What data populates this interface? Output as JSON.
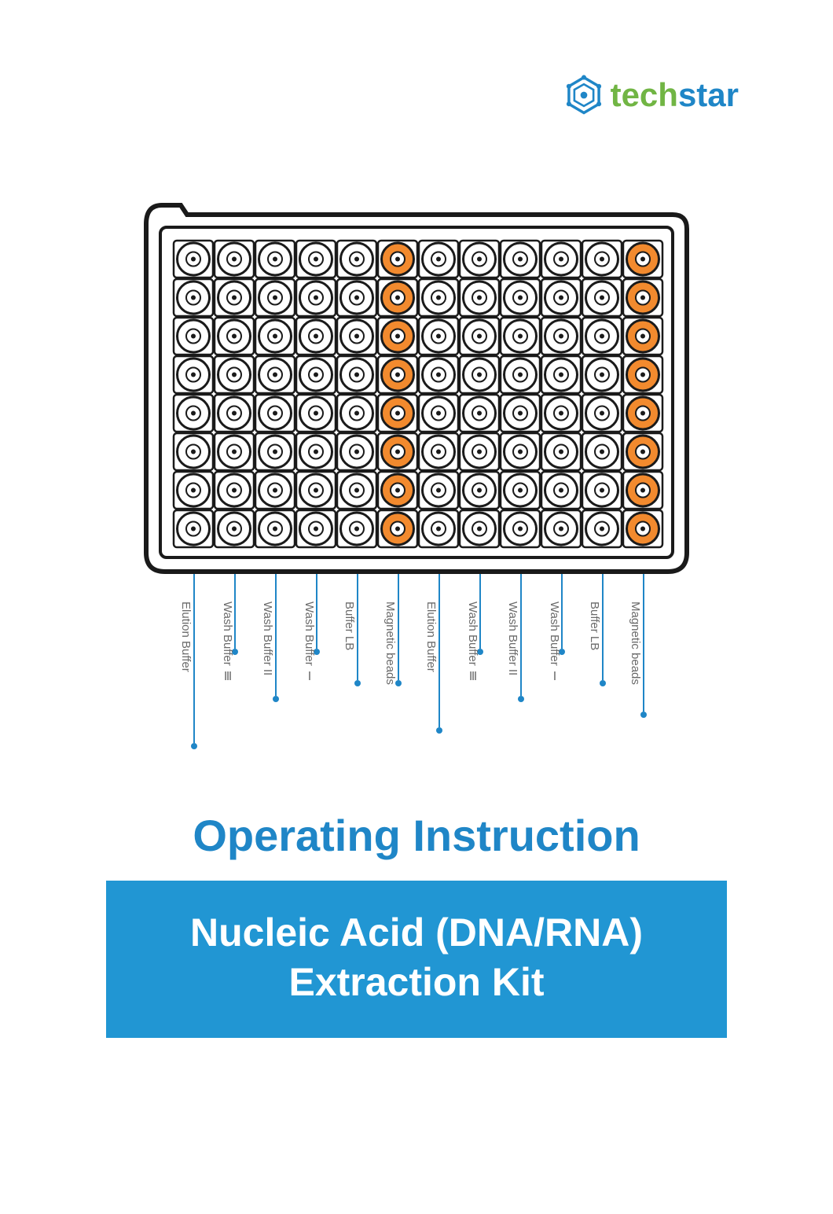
{
  "logo": {
    "tech": "tech",
    "star": "star",
    "icon_color": "#1f86c7"
  },
  "heading": "Operating Instruction",
  "subtitle_line1": "Nucleic Acid (DNA/RNA)",
  "subtitle_line2": "Extraction Kit",
  "colors": {
    "primary_blue": "#1f86c7",
    "subtitle_bg": "#2196d3",
    "subtitle_text": "#ffffff",
    "well_outline": "#1a1a1a",
    "well_white": "#ffffff",
    "well_orange": "#f28a2e",
    "plate_border": "#1a1a1a",
    "callout_line": "#1f86c7",
    "label_text": "#6a6a6a",
    "logo_green": "#71b544",
    "background": "#ffffff"
  },
  "plate": {
    "rows": 8,
    "cols": 12,
    "orange_columns": [
      5,
      11
    ],
    "callouts": [
      {
        "col": 0,
        "label": "Elution Buffer",
        "length": 215
      },
      {
        "col": 1,
        "label": "Wash Buffer Ⅲ",
        "length": 95
      },
      {
        "col": 2,
        "label": "Wash Buffer II",
        "length": 155
      },
      {
        "col": 3,
        "label": "Wash Buffer Ⅰ",
        "length": 95
      },
      {
        "col": 4,
        "label": "Buffer LB",
        "length": 135
      },
      {
        "col": 5,
        "label": "Magnetic beads",
        "length": 135
      },
      {
        "col": 6,
        "label": "Elution Buffer",
        "length": 195
      },
      {
        "col": 7,
        "label": "Wash Buffer Ⅲ",
        "length": 95
      },
      {
        "col": 8,
        "label": "Wash Buffer II",
        "length": 155
      },
      {
        "col": 9,
        "label": "Wash Buffer Ⅰ",
        "length": 95
      },
      {
        "col": 10,
        "label": "Buffer LB",
        "length": 135
      },
      {
        "col": 11,
        "label": "Magnetic beads",
        "length": 175
      }
    ]
  },
  "typography": {
    "heading_size": 56,
    "heading_weight": 800,
    "subtitle_size": 50,
    "subtitle_weight": 700,
    "callout_size": 15,
    "logo_size": 42
  }
}
